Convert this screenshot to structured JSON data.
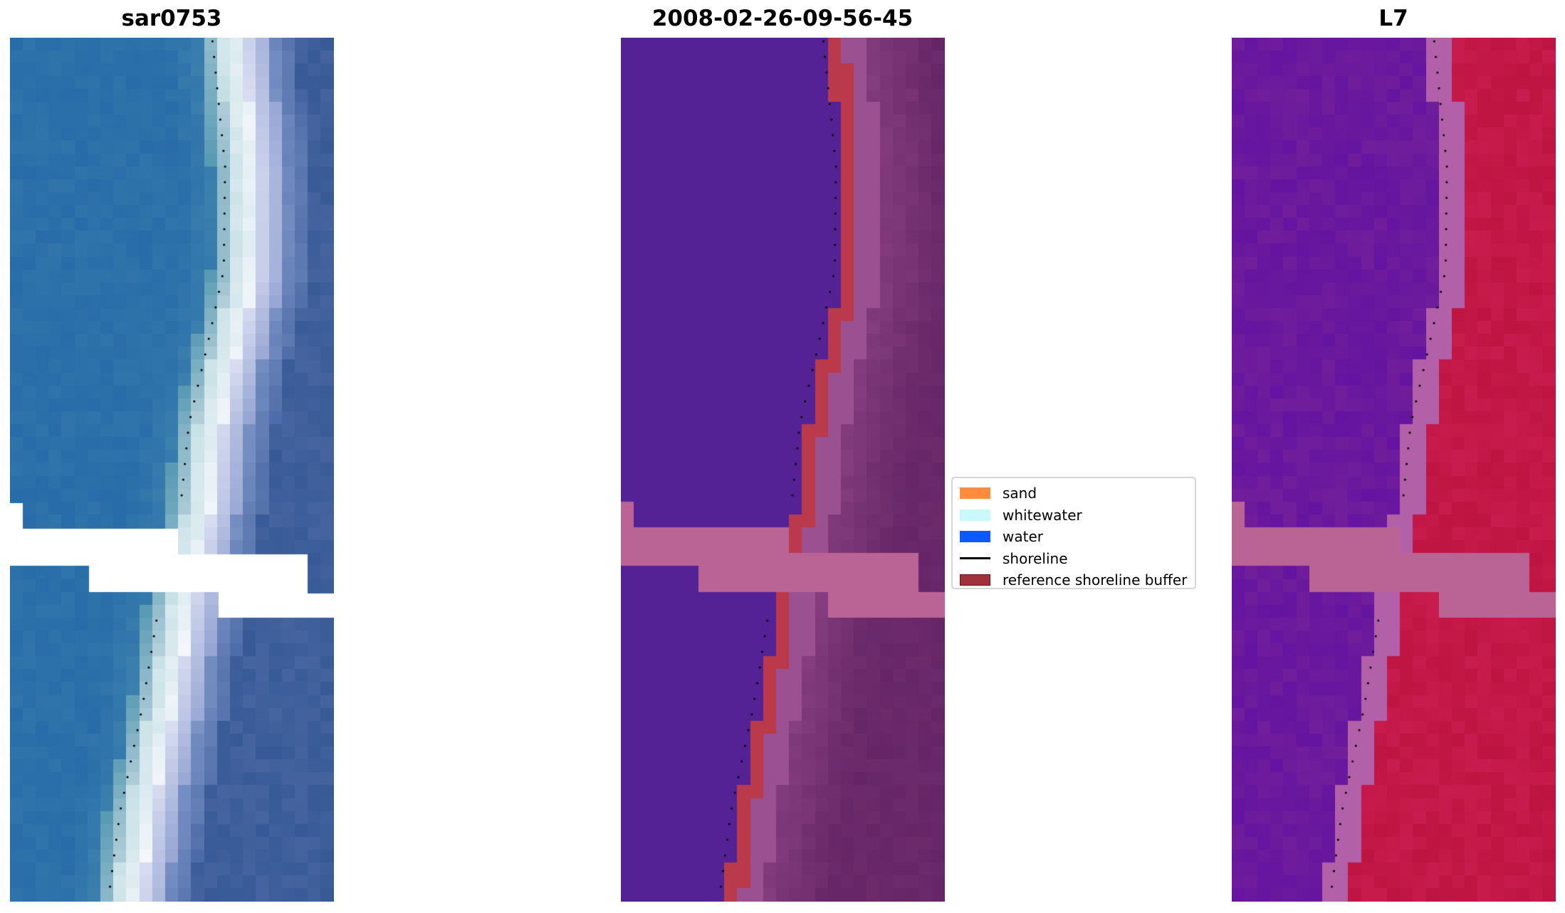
{
  "panels": [
    {
      "title": "sar0753",
      "kind": "rgb"
    },
    {
      "title": "2008-02-26-09-56-45",
      "kind": "classified"
    },
    {
      "title": "L7",
      "kind": "index"
    }
  ],
  "legend": {
    "items": [
      {
        "label": "sand",
        "color": "#ff8c3c",
        "type": "patch"
      },
      {
        "label": "whitewater",
        "color": "#c8fafa",
        "type": "patch"
      },
      {
        "label": "water",
        "color": "#0a5aff",
        "type": "patch"
      },
      {
        "label": "shoreline",
        "color": "#000000",
        "type": "line"
      },
      {
        "label": "reference shoreline buffer",
        "color": "#a0323c",
        "type": "patch"
      }
    ]
  }
}
